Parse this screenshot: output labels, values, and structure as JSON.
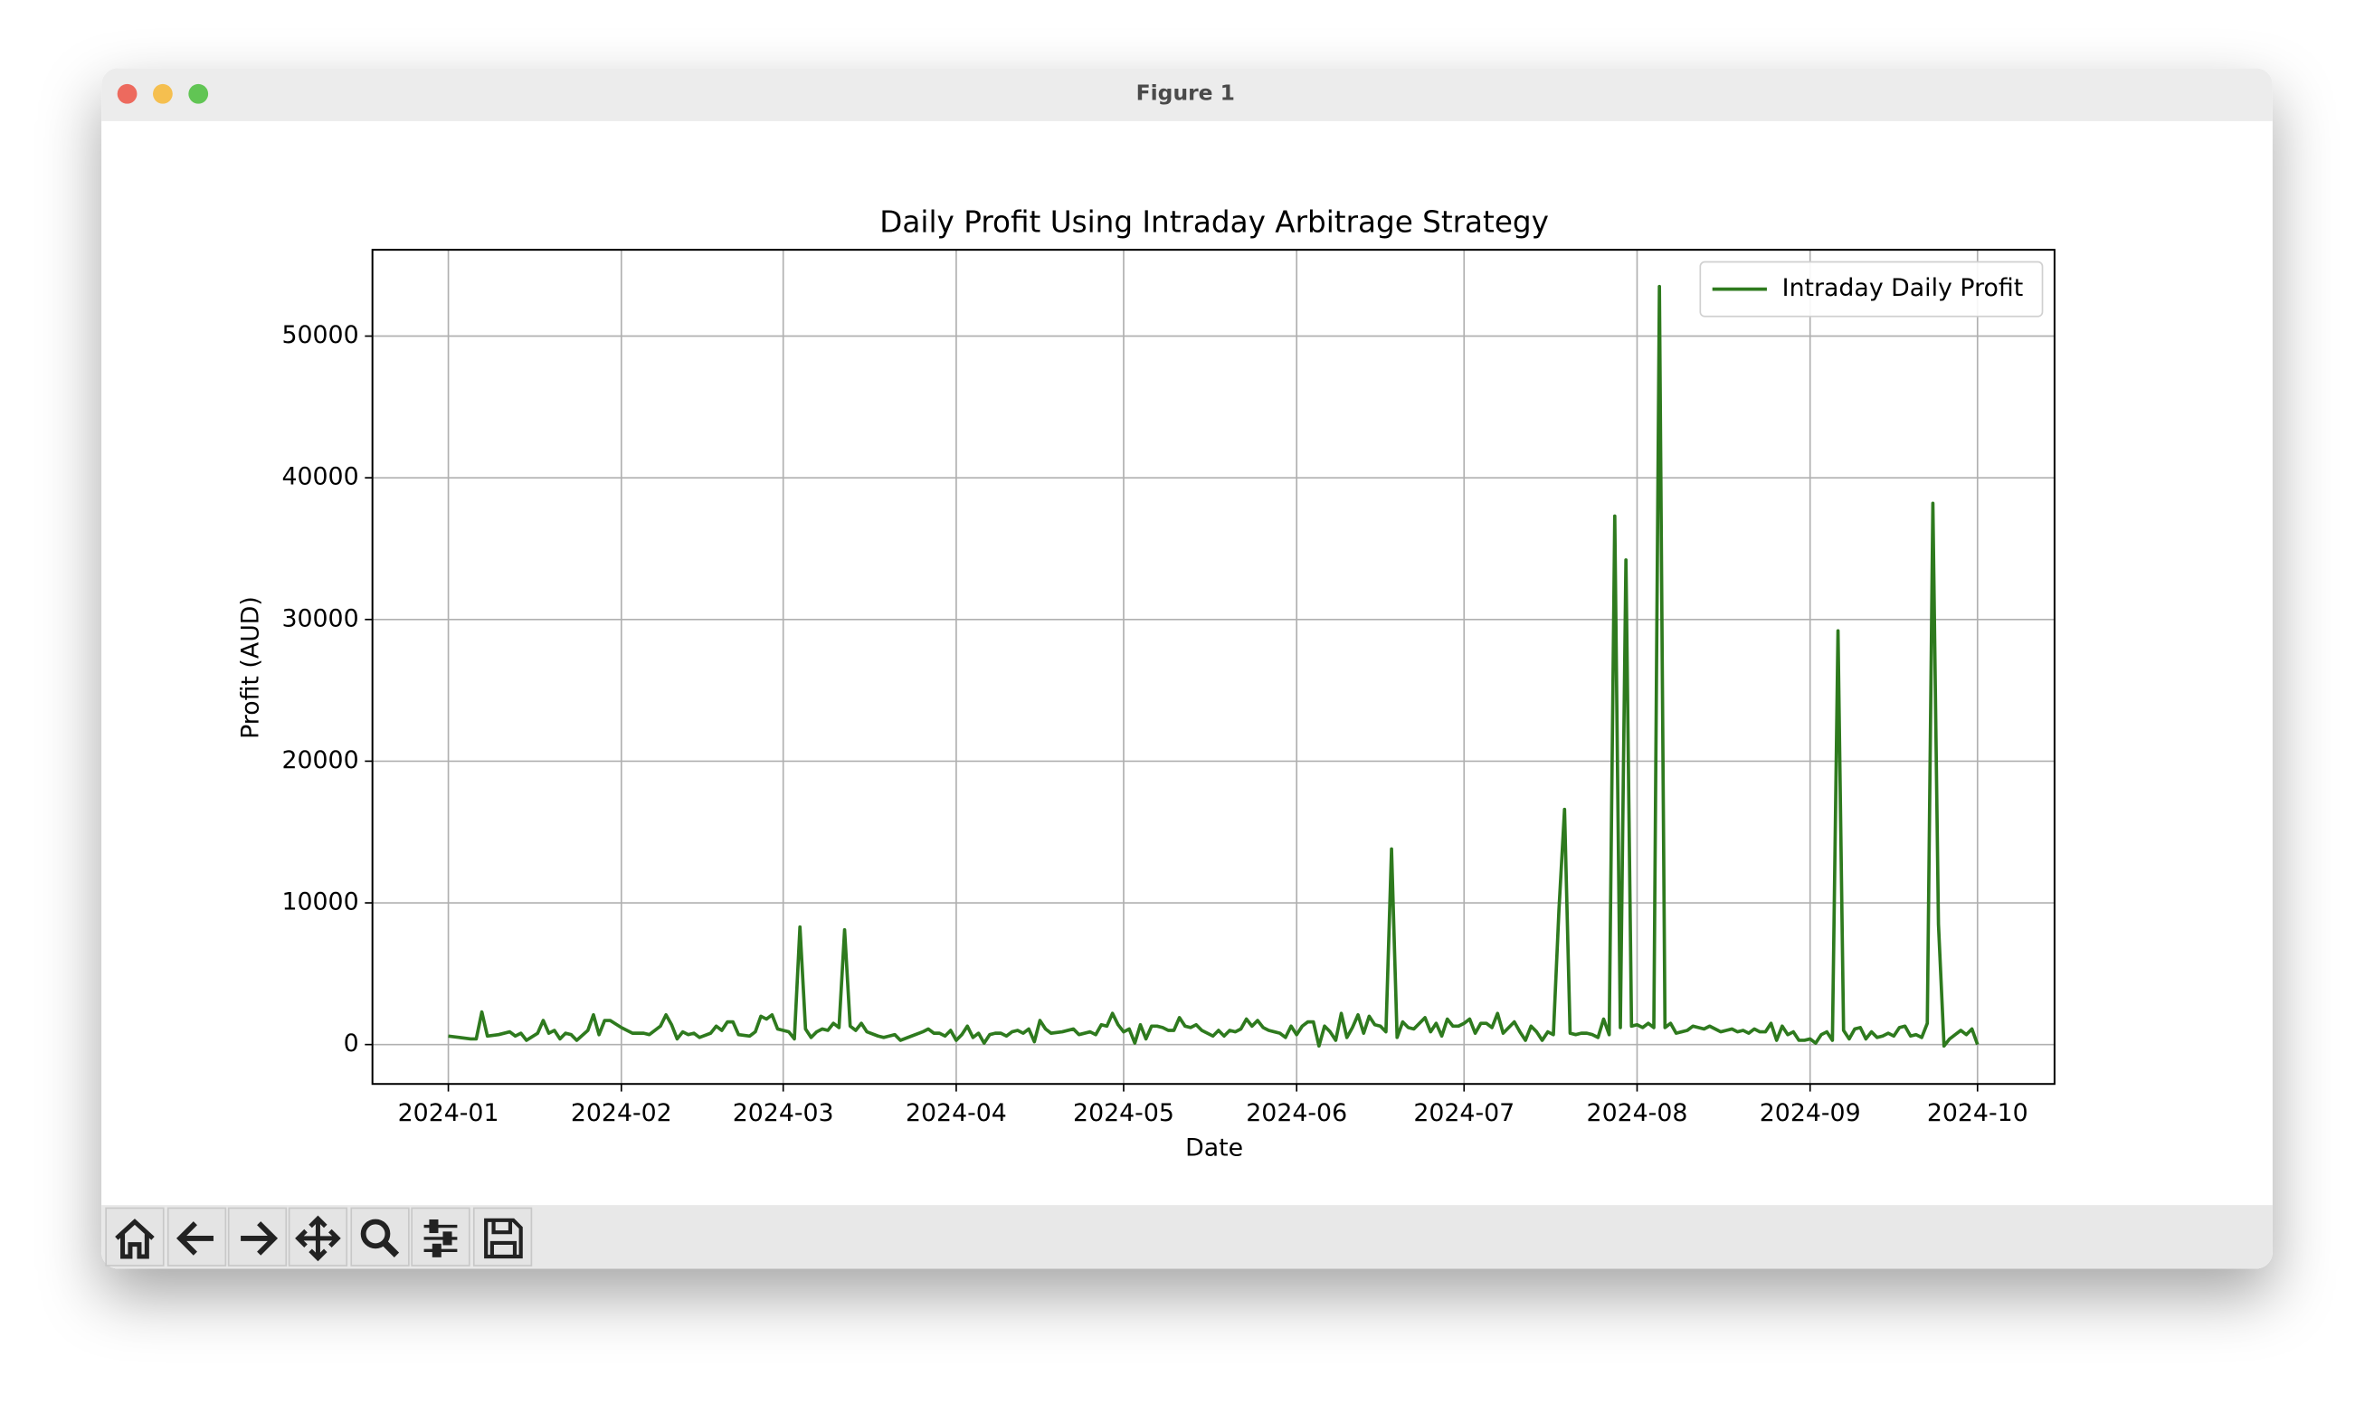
{
  "window": {
    "title": "Figure 1"
  },
  "chart_data": {
    "type": "line",
    "title": "Daily Profit Using Intraday Arbitrage Strategy",
    "x_label": "Date",
    "y_label": "Profit (AUD)",
    "legend": "upper right",
    "grid": true,
    "xlim": [
      -13.6,
      287.8
    ],
    "xticks": [
      {
        "value": 0,
        "label": "2024-01"
      },
      {
        "value": 31,
        "label": "2024-02"
      },
      {
        "value": 60,
        "label": "2024-03"
      },
      {
        "value": 91,
        "label": "2024-04"
      },
      {
        "value": 121,
        "label": "2024-05"
      },
      {
        "value": 152,
        "label": "2024-06"
      },
      {
        "value": 182,
        "label": "2024-07"
      },
      {
        "value": 213,
        "label": "2024-08"
      },
      {
        "value": 244,
        "label": "2024-09"
      },
      {
        "value": 274,
        "label": "2024-10"
      }
    ],
    "ylim": [
      -2780,
      56090
    ],
    "yticks": [
      0,
      10000,
      20000,
      30000,
      40000,
      50000
    ],
    "x": [
      0,
      2,
      4,
      5,
      6,
      7,
      9,
      11,
      12,
      13,
      14,
      16,
      17,
      18,
      19,
      20,
      21,
      22,
      23,
      25,
      26,
      27,
      28,
      29,
      31,
      33,
      35,
      36,
      38,
      39,
      40,
      41,
      42,
      43,
      44,
      45,
      47,
      48,
      49,
      50,
      51,
      52,
      54,
      55,
      56,
      57,
      58,
      59,
      60,
      61,
      62,
      63,
      64,
      65,
      66,
      67,
      68,
      69,
      70,
      71,
      72,
      73,
      74,
      75,
      77,
      78,
      79,
      80,
      81,
      83,
      85,
      86,
      87,
      88,
      89,
      90,
      91,
      92,
      93,
      94,
      95,
      96,
      97,
      98,
      99,
      100,
      101,
      102,
      103,
      104,
      105,
      106,
      107,
      108,
      110,
      112,
      113,
      115,
      116,
      117,
      118,
      119,
      120,
      121,
      122,
      123,
      124,
      125,
      126,
      127,
      128,
      129,
      130,
      131,
      132,
      133,
      134,
      135,
      136,
      137,
      138,
      139,
      140,
      141,
      142,
      143,
      144,
      145,
      146,
      147,
      148,
      149,
      150,
      151,
      152,
      153,
      154,
      155,
      156,
      157,
      158,
      159,
      160,
      161,
      162,
      163,
      164,
      165,
      166,
      167,
      168,
      169,
      170,
      171,
      172,
      173,
      174,
      175,
      176,
      177,
      178,
      179,
      180,
      181,
      182,
      183,
      184,
      185,
      186,
      187,
      188,
      189,
      190,
      191,
      192,
      193,
      194,
      195,
      196,
      197,
      198,
      199,
      200,
      201,
      202,
      203,
      204,
      205,
      206,
      207,
      208,
      209,
      210,
      211,
      212,
      213,
      214,
      215,
      216,
      217,
      218,
      219,
      220,
      221,
      222,
      223,
      224,
      225,
      226,
      227,
      228,
      229,
      230,
      231,
      232,
      233,
      234,
      235,
      236,
      237,
      238,
      239,
      240,
      241,
      242,
      243,
      244,
      245,
      246,
      247,
      248,
      249,
      250,
      251,
      252,
      253,
      254,
      255,
      256,
      257,
      258,
      259,
      260,
      261,
      262,
      263,
      264,
      265,
      266,
      267,
      268,
      269,
      270,
      271,
      272,
      273,
      274
    ],
    "series": [
      {
        "name": "Intraday Daily Profit",
        "color": "#2e7a1e",
        "values": [
          600,
          500,
          400,
          400,
          2300,
          600,
          700,
          900,
          600,
          800,
          300,
          800,
          1700,
          800,
          1000,
          400,
          800,
          700,
          300,
          1000,
          2100,
          700,
          1700,
          1700,
          1200,
          800,
          800,
          700,
          1300,
          2100,
          1400,
          400,
          900,
          700,
          800,
          500,
          800,
          1300,
          1000,
          1600,
          1600,
          700,
          600,
          900,
          2000,
          1800,
          2100,
          1100,
          1000,
          900,
          400,
          8300,
          1100,
          500,
          900,
          1100,
          1000,
          1500,
          1200,
          8100,
          1300,
          1000,
          1500,
          900,
          600,
          500,
          600,
          700,
          300,
          600,
          900,
          1100,
          800,
          800,
          600,
          1000,
          300,
          700,
          1300,
          500,
          800,
          100,
          700,
          800,
          800,
          600,
          900,
          1000,
          800,
          1100,
          200,
          1700,
          1100,
          800,
          900,
          1100,
          700,
          900,
          700,
          1400,
          1300,
          2200,
          1400,
          900,
          1100,
          100,
          1400,
          400,
          1300,
          1300,
          1200,
          1000,
          1000,
          1900,
          1300,
          1200,
          1400,
          1000,
          800,
          600,
          1000,
          600,
          1000,
          900,
          1100,
          1800,
          1300,
          1700,
          1200,
          1000,
          900,
          800,
          500,
          1300,
          700,
          1300,
          1600,
          1600,
          -100,
          1300,
          900,
          300,
          2200,
          500,
          1200,
          2100,
          800,
          2000,
          1400,
          1300,
          900,
          13800,
          500,
          1600,
          1200,
          1100,
          1500,
          1900,
          900,
          1500,
          600,
          1800,
          1300,
          1300,
          1500,
          1800,
          800,
          1500,
          1500,
          1200,
          2200,
          800,
          1200,
          1600,
          900,
          300,
          1300,
          900,
          300,
          900,
          700,
          9500,
          16600,
          800,
          700,
          800,
          800,
          700,
          500,
          1800,
          700,
          37300,
          1200,
          34200,
          1300,
          1400,
          1200,
          1500,
          1200,
          53500,
          1200,
          1500,
          800,
          900,
          1000,
          1300,
          1200,
          1100,
          1300,
          1100,
          900,
          1000,
          1100,
          900,
          1000,
          800,
          1100,
          900,
          900,
          1500,
          300,
          1300,
          700,
          900,
          300,
          300,
          400,
          100,
          700,
          900,
          300,
          29200,
          1000,
          400,
          1100,
          1200,
          400,
          900,
          500,
          600,
          800,
          600,
          1200,
          1300,
          600,
          700,
          500,
          1500,
          38200,
          8500,
          -100,
          400,
          700,
          1000,
          700,
          1100,
          0
        ]
      }
    ]
  }
}
